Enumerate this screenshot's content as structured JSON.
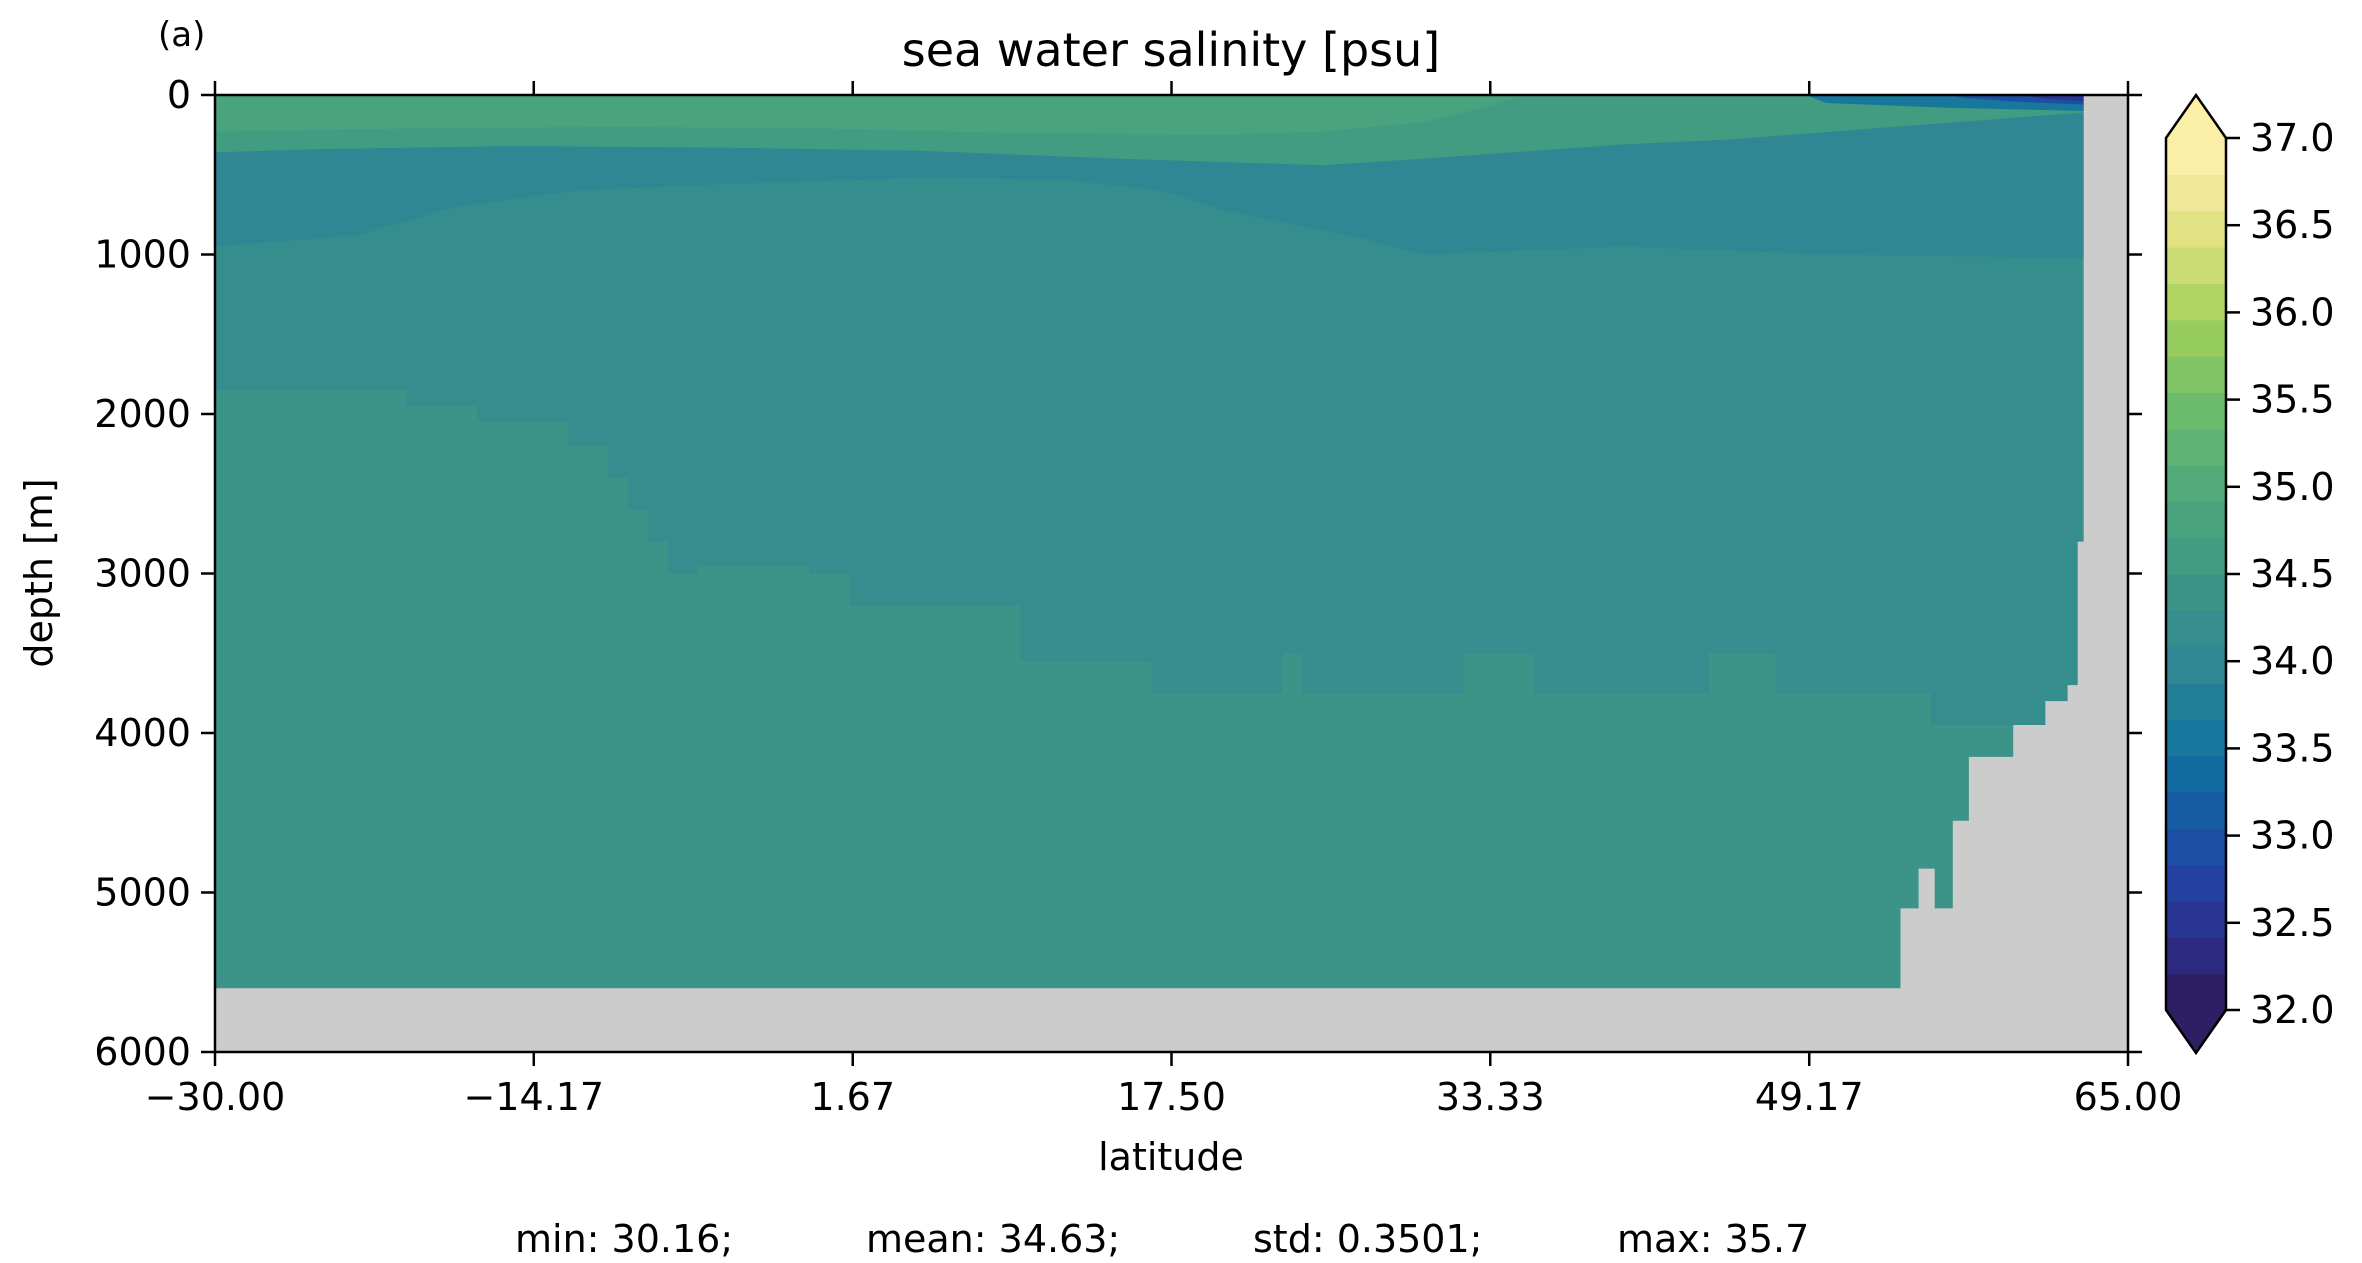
{
  "chart_data": {
    "type": "heatmap",
    "panel_label": "(a)",
    "title": "sea water salinity [psu]",
    "xlabel": "latitude",
    "ylabel": "depth [m]",
    "xlim": [
      -30,
      65
    ],
    "ylim": [
      6000,
      0
    ],
    "y_inverted": true,
    "xticks": [
      "−30.00",
      "−14.17",
      "1.67",
      "17.50",
      "33.33",
      "49.17",
      "65.00"
    ],
    "xtick_values": [
      -30,
      -14.17,
      1.67,
      17.5,
      33.33,
      49.17,
      65
    ],
    "yticks": [
      "0",
      "1000",
      "2000",
      "3000",
      "4000",
      "5000",
      "6000"
    ],
    "ytick_values": [
      0,
      1000,
      2000,
      3000,
      4000,
      5000,
      6000
    ],
    "colorbar": {
      "min": 32.0,
      "max": 37.0,
      "step": 0.25,
      "extend": "both",
      "ticks": [
        "32.0",
        "32.5",
        "33.0",
        "33.5",
        "34.0",
        "34.5",
        "35.0",
        "35.5",
        "36.0",
        "36.5",
        "37.0"
      ],
      "tick_values": [
        32.0,
        32.5,
        33.0,
        33.5,
        34.0,
        34.5,
        35.0,
        35.5,
        36.0,
        36.5,
        37.0
      ],
      "colors": [
        "#2e1e63",
        "#2b2a80",
        "#283592",
        "#23419f",
        "#1c4ea3",
        "#155ca2",
        "#116aa0",
        "#18779c",
        "#237f97",
        "#2e8792",
        "#368d8d",
        "#3b9487",
        "#419c82",
        "#48a37e",
        "#52ab79",
        "#5fb374",
        "#6dbc6e",
        "#80c465",
        "#97cd5e",
        "#b2d664",
        "#cbdd74",
        "#e1e284",
        "#f0e898",
        "#fbefa8"
      ],
      "under_color": "#2e1e63",
      "over_color": "#fcefa8"
    },
    "land_color": "#cccccc",
    "salinity_bands_psu": {
      "surface_subtropical": 35.3,
      "upper_layer": 35.1,
      "intermediate_water": 34.4,
      "deep_water": 34.6,
      "bottom_water": 34.9,
      "northern_surface_fresh": 32.5
    },
    "stats": {
      "min": "min: 30.16;",
      "mean": "mean: 34.63;",
      "std": "std: 0.3501;",
      "max": "max: 35.7"
    }
  }
}
